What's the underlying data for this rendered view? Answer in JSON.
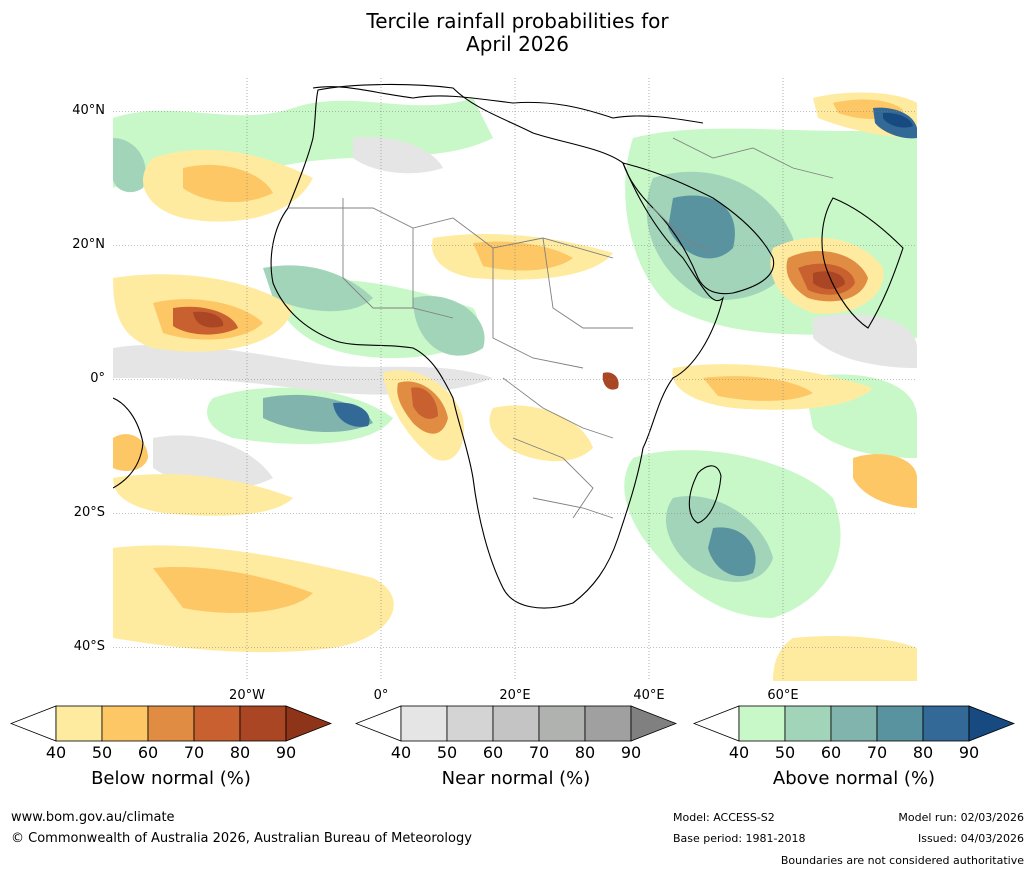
{
  "title_line1": "Tercile rainfall probabilities for",
  "title_line2": "April 2026",
  "map": {
    "extent": {
      "lon_min": -40,
      "lon_max": 80,
      "lat_min": -45,
      "lat_max": 45
    },
    "lat_labels": [
      "40°N",
      "20°N",
      "0°",
      "20°S",
      "40°S"
    ],
    "lat_values": [
      40,
      20,
      0,
      -20,
      -40
    ],
    "lon_labels": [
      "20°W",
      "0°",
      "20°E",
      "40°E",
      "60°E"
    ],
    "lon_values": [
      -20,
      0,
      20,
      40,
      60
    ],
    "grid": true
  },
  "colorbars": {
    "below": {
      "title": "Below normal (%)",
      "ticks": [
        "40",
        "50",
        "60",
        "70",
        "80",
        "90"
      ],
      "colors": [
        "#ffffff",
        "#ffeba0",
        "#fdc765",
        "#e08d43",
        "#c8602f",
        "#ab4624",
        "#8e3419"
      ]
    },
    "near": {
      "title": "Near normal (%)",
      "ticks": [
        "40",
        "50",
        "60",
        "70",
        "80",
        "90"
      ],
      "colors": [
        "#ffffff",
        "#e5e5e5",
        "#d4d4d4",
        "#c4c4c4",
        "#b0b2b0",
        "#a0a0a0",
        "#808080"
      ]
    },
    "above": {
      "title": "Above normal (%)",
      "ticks": [
        "40",
        "50",
        "60",
        "70",
        "80",
        "90"
      ],
      "colors": [
        "#ffffff",
        "#c8f8c8",
        "#a2d4ba",
        "#80b4ac",
        "#5a93a0",
        "#336996",
        "#174a80"
      ]
    }
  },
  "footer": {
    "website": "www.bom.gov.au/climate",
    "copyright": "© Commonwealth of Australia 2026, Australian Bureau of Meteorology",
    "model": "Model: ACCESS-S2",
    "base_period": "Base period: 1981-2018",
    "model_run": "Model run: 02/03/2026",
    "issued": "Issued: 04/03/2026",
    "disclaimer": "Boundaries are not considered authoritative"
  }
}
